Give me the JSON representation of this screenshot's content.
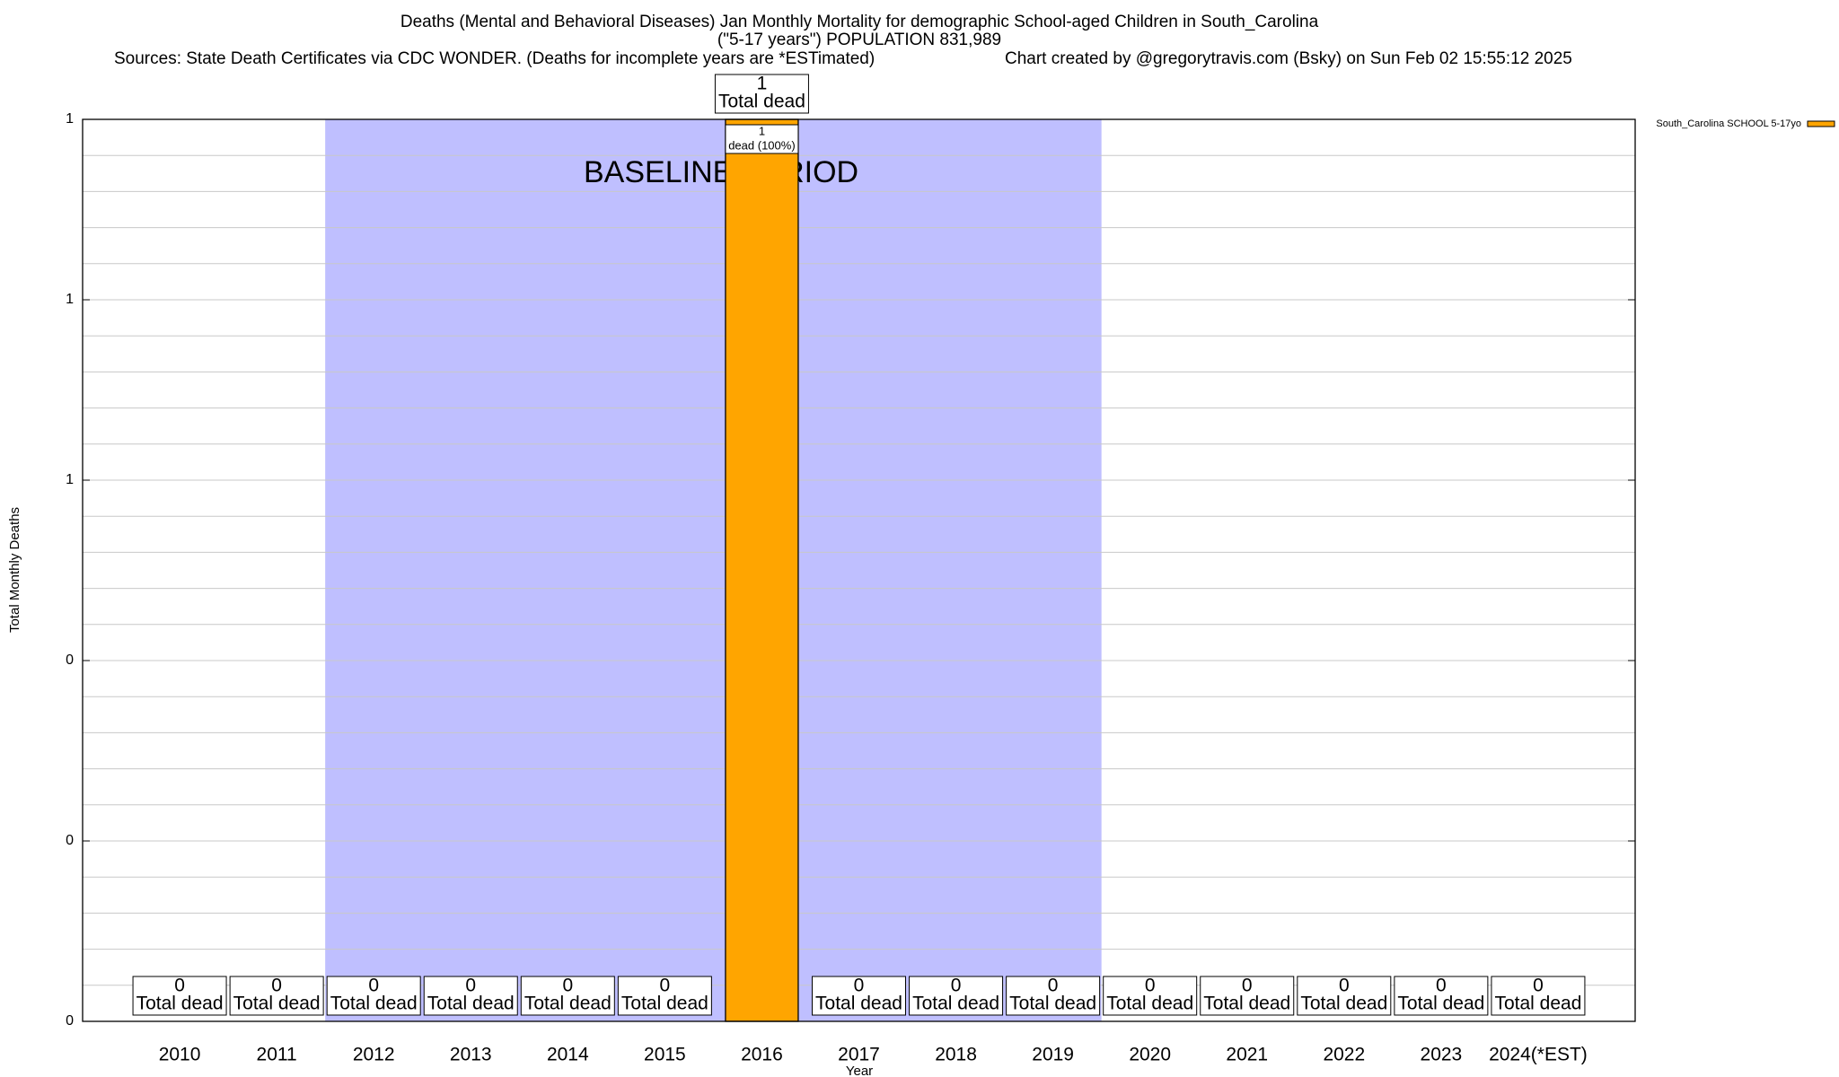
{
  "chart_data": {
    "type": "bar",
    "title": [
      "Deaths (Mental and Behavioral Diseases) Jan Monthly Mortality for demographic School-aged Children in South_Carolina",
      "(\"5-17 years\") POPULATION 831,989"
    ],
    "sources": "Sources: State Death Certificates via CDC WONDER. (Deaths for incomplete years are *ESTimated)",
    "credit": "Chart created by @gregorytravis.com (Bsky) on Sun Feb 02 15:55:12 2025",
    "xlabel": "Year",
    "ylabel": "Total Monthly Deaths",
    "categories": [
      "2010",
      "2011",
      "2012",
      "2013",
      "2014",
      "2015",
      "2016",
      "2017",
      "2018",
      "2019",
      "2020",
      "2021",
      "2022",
      "2023",
      "2024(*EST)"
    ],
    "series": [
      {
        "name": "South_Carolina SCHOOL 5-17yo",
        "color": "#ffa500",
        "values": [
          0,
          0,
          0,
          0,
          0,
          0,
          1,
          0,
          0,
          0,
          0,
          0,
          0,
          0,
          0
        ]
      }
    ],
    "total_label": "Total dead",
    "segment_label": "dead (100%)",
    "ylim": [
      0,
      1
    ],
    "yticks": [
      0,
      {
        "value": 0.2,
        "label": "0"
      },
      {
        "value": 0.4,
        "label": "0"
      },
      {
        "value": 0.6,
        "label": "1"
      },
      {
        "value": 0.8,
        "label": "1"
      },
      1
    ],
    "minor_yticks": [
      0.04,
      0.08,
      0.12,
      0.16,
      0.24,
      0.28,
      0.32,
      0.36,
      0.44,
      0.48,
      0.52,
      0.56,
      0.64,
      0.68,
      0.72,
      0.76,
      0.84,
      0.88,
      0.92,
      0.96
    ],
    "grid": true,
    "shade": {
      "from": "2012",
      "to": "2019",
      "label": "BASELINE PERIOD",
      "color": "#bfbfff"
    },
    "legend": "top-right"
  }
}
